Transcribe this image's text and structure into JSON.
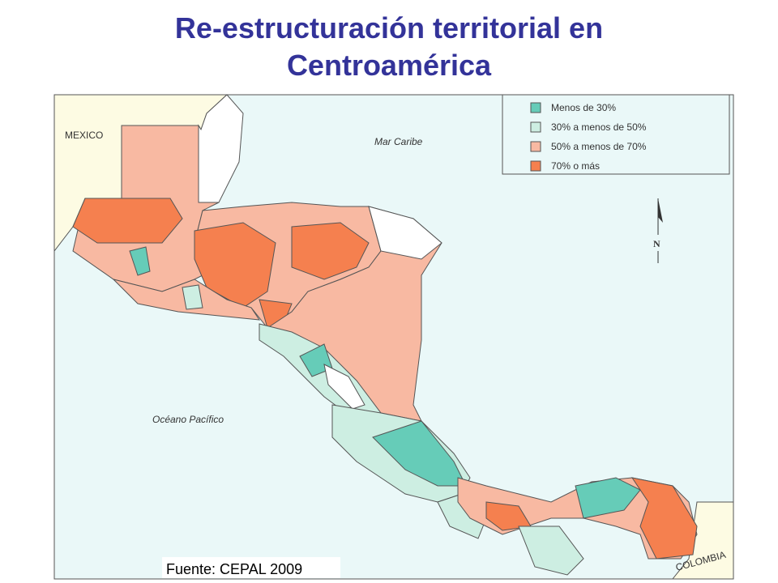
{
  "title": "Re-estructuración territorial en Centroamérica",
  "legend": [
    {
      "label": "Menos de 30%",
      "color": "#66ccb8"
    },
    {
      "label": "30% a menos de 50%",
      "color": "#cdeee2"
    },
    {
      "label": "50% a menos de 70%",
      "color": "#f8b9a2"
    },
    {
      "label": "70% o más",
      "color": "#f5804f"
    }
  ],
  "map_labels": {
    "mexico": "MEXICO",
    "caribbean": "Mar Caribe",
    "pacific": "Océano Pacífico",
    "colombia": "COLOMBIA",
    "north": "N"
  },
  "source": "Fuente: CEPAL 2009"
}
